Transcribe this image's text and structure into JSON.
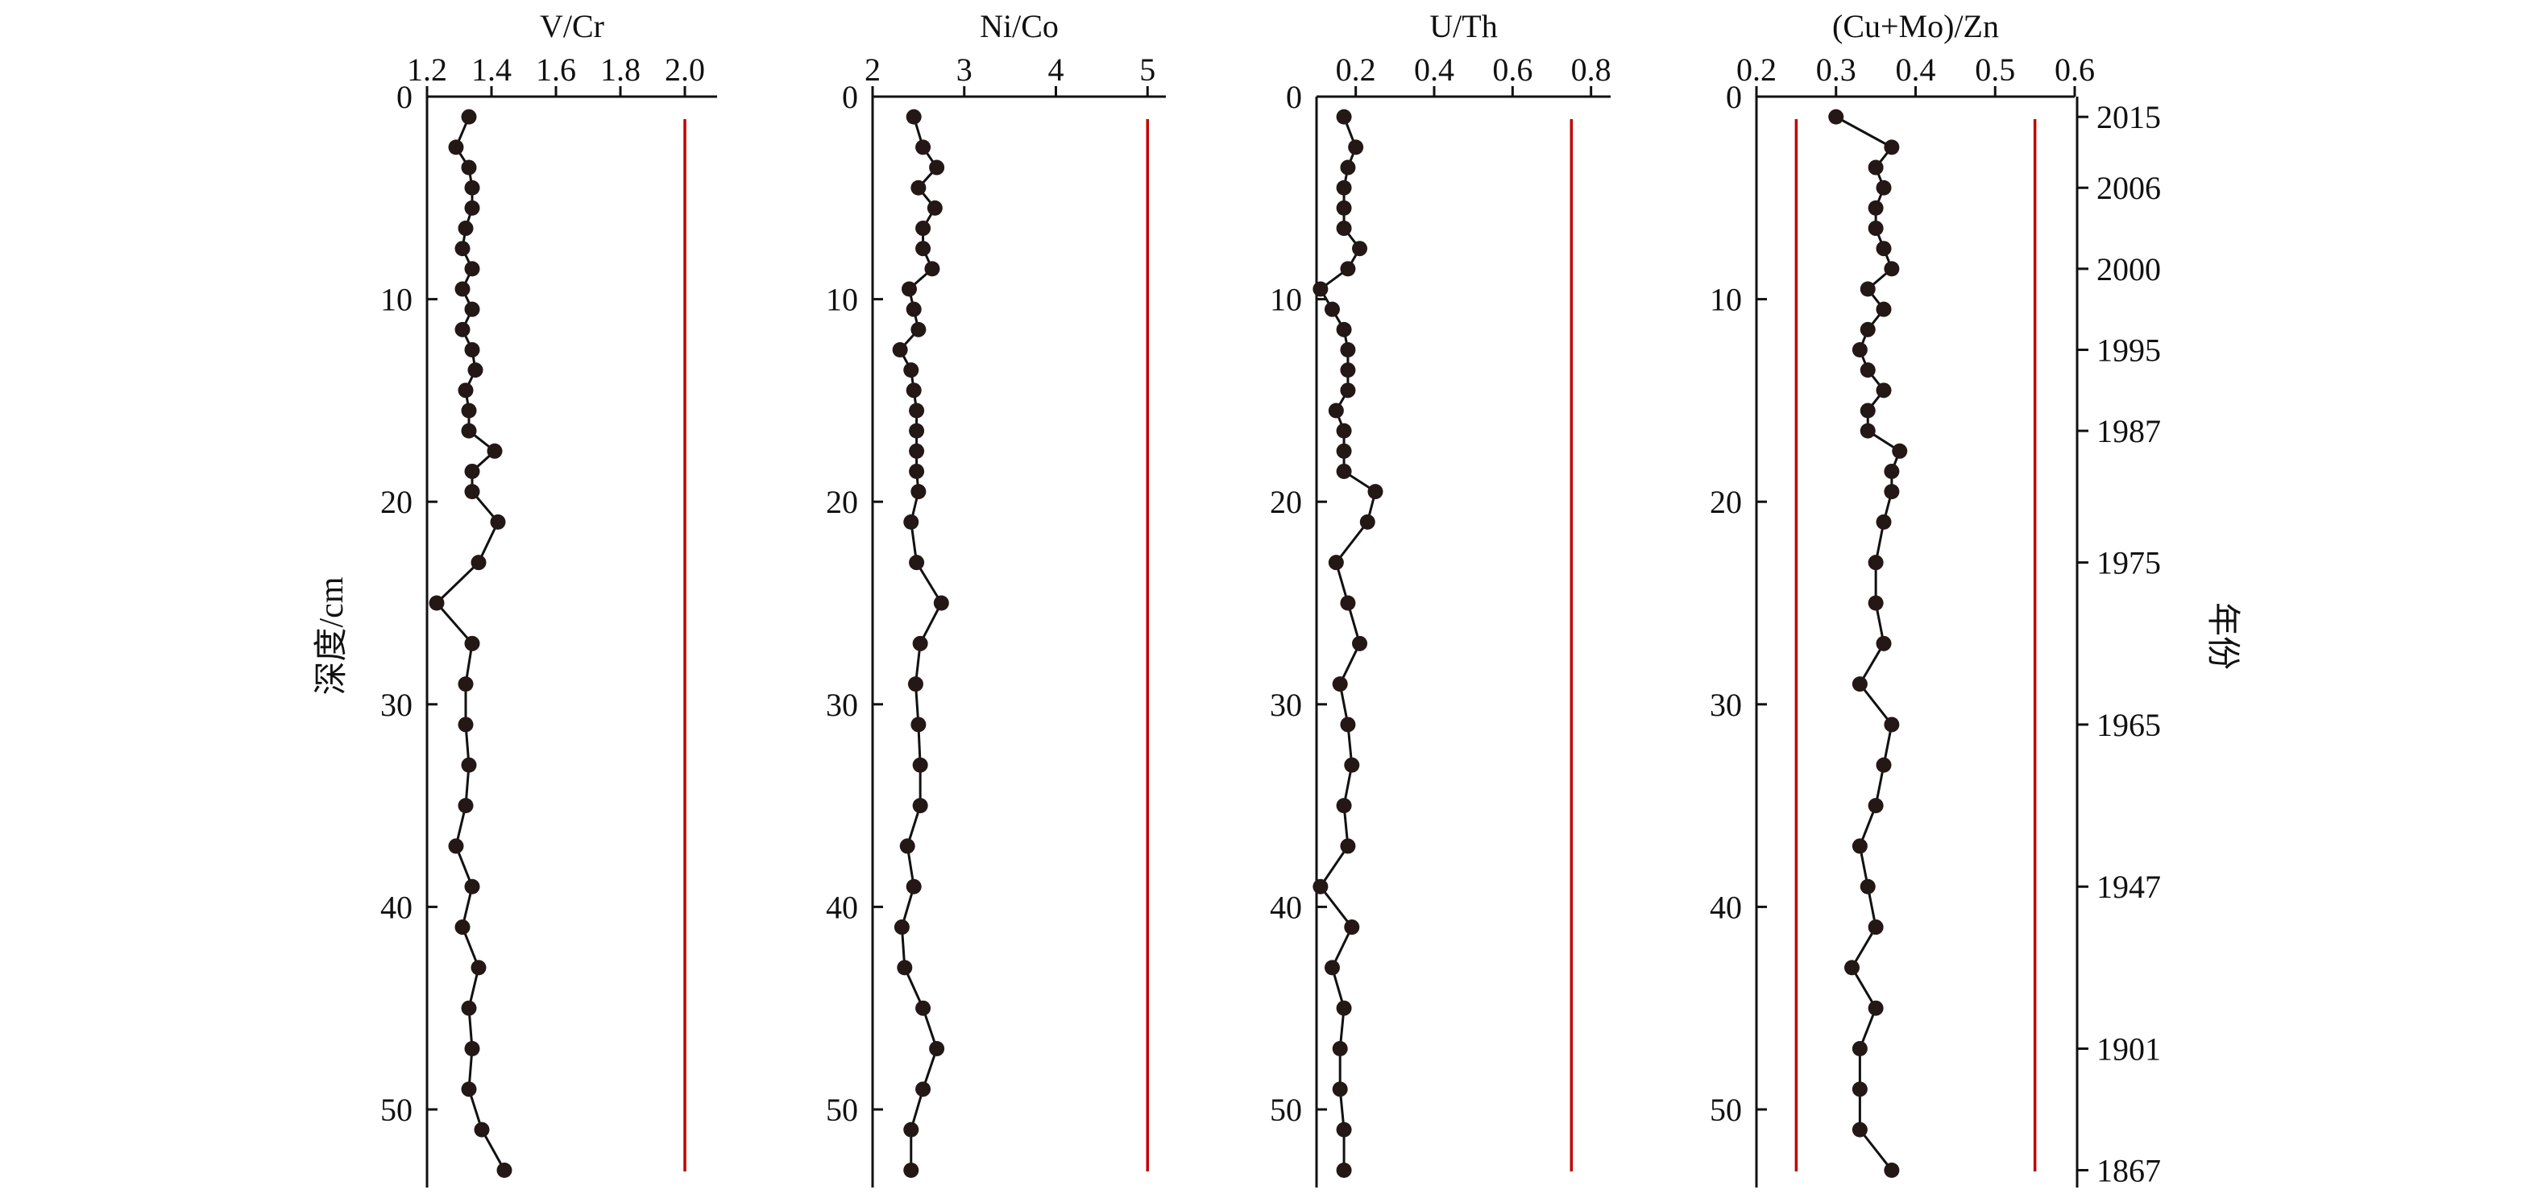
{
  "chart_data": {
    "type": "line",
    "orientation": "depth-profile",
    "ylabel": "深度/cm",
    "right_label": "年份",
    "depth_range": [
      0,
      54
    ],
    "depth_ticks": [
      0,
      10,
      20,
      30,
      40,
      50
    ],
    "depth_tick_labels": [
      "0",
      "10",
      "20",
      "30",
      "40",
      "50"
    ],
    "year_axis": {
      "depths": [
        1,
        4.5,
        8.5,
        12.5,
        16.5,
        23,
        31,
        39,
        47,
        53
      ],
      "labels": [
        "2015",
        "2006",
        "2000",
        "1995",
        "1987",
        "1975",
        "1965",
        "1947",
        "1901",
        "1867"
      ]
    },
    "depths": [
      1,
      2.5,
      3.5,
      4.5,
      5.5,
      6.5,
      7.5,
      8.5,
      9.5,
      10.5,
      11.5,
      12.5,
      13.5,
      14.5,
      15.5,
      16.5,
      17.5,
      18.5,
      19.5,
      21,
      23,
      25,
      27,
      29,
      31,
      33,
      35,
      37,
      39,
      41,
      43,
      45,
      47,
      49,
      51,
      53
    ],
    "panels": [
      {
        "title": "V/Cr",
        "xlim": [
          1.2,
          2.1
        ],
        "ticks": [
          1.2,
          1.4,
          1.6,
          1.8,
          2.0
        ],
        "tick_labels": [
          "1.2",
          "1.4",
          "1.6",
          "1.8",
          "2.0"
        ],
        "reference_lines": [
          2.0
        ],
        "values": [
          1.33,
          1.29,
          1.33,
          1.34,
          1.34,
          1.32,
          1.31,
          1.34,
          1.31,
          1.34,
          1.31,
          1.34,
          1.35,
          1.32,
          1.33,
          1.33,
          1.41,
          1.34,
          1.34,
          1.42,
          1.36,
          1.23,
          1.34,
          1.32,
          1.32,
          1.33,
          1.32,
          1.29,
          1.34,
          1.31,
          1.36,
          1.33,
          1.34,
          1.33,
          1.37,
          1.44
        ]
      },
      {
        "title": "Ni/Co",
        "xlim": [
          2,
          5.2
        ],
        "ticks": [
          2,
          3,
          4,
          5
        ],
        "tick_labels": [
          "2",
          "3",
          "4",
          "5"
        ],
        "reference_lines": [
          5.0
        ],
        "values": [
          2.45,
          2.55,
          2.7,
          2.5,
          2.68,
          2.55,
          2.55,
          2.65,
          2.4,
          2.45,
          2.5,
          2.3,
          2.42,
          2.45,
          2.48,
          2.48,
          2.48,
          2.48,
          2.5,
          2.42,
          2.48,
          2.75,
          2.52,
          2.47,
          2.5,
          2.52,
          2.52,
          2.38,
          2.45,
          2.32,
          2.35,
          2.55,
          2.7,
          2.55,
          2.42,
          2.42
        ]
      },
      {
        "title": "U/Th",
        "xlim": [
          0.1,
          0.85
        ],
        "ticks": [
          0.2,
          0.4,
          0.6,
          0.8
        ],
        "tick_labels": [
          "0.2",
          "0.4",
          "0.6",
          "0.8"
        ],
        "reference_lines": [
          0.75
        ],
        "values": [
          0.17,
          0.2,
          0.18,
          0.17,
          0.17,
          0.17,
          0.21,
          0.18,
          0.11,
          0.14,
          0.17,
          0.18,
          0.18,
          0.18,
          0.15,
          0.17,
          0.17,
          0.17,
          0.25,
          0.23,
          0.15,
          0.18,
          0.21,
          0.16,
          0.18,
          0.19,
          0.17,
          0.18,
          0.11,
          0.19,
          0.14,
          0.17,
          0.16,
          0.16,
          0.17,
          0.17
        ]
      },
      {
        "title": "(Cu+Mo)/Zn",
        "xlim": [
          0.2,
          0.6
        ],
        "ticks": [
          0.2,
          0.3,
          0.4,
          0.5,
          0.6
        ],
        "tick_labels": [
          "0.2",
          "0.3",
          "0.4",
          "0.5",
          "0.6"
        ],
        "reference_lines": [
          0.25,
          0.55
        ],
        "values": [
          0.3,
          0.37,
          0.35,
          0.36,
          0.35,
          0.35,
          0.36,
          0.37,
          0.34,
          0.36,
          0.34,
          0.33,
          0.34,
          0.36,
          0.34,
          0.34,
          0.38,
          0.37,
          0.37,
          0.36,
          0.35,
          0.35,
          0.36,
          0.33,
          0.37,
          0.36,
          0.35,
          0.33,
          0.34,
          0.35,
          0.32,
          0.35,
          0.33,
          0.33,
          0.33,
          0.37
        ]
      }
    ],
    "colors": {
      "points": "#231816",
      "line": "#111111",
      "reference": "#c00000"
    },
    "grid": false,
    "legend": "none"
  }
}
